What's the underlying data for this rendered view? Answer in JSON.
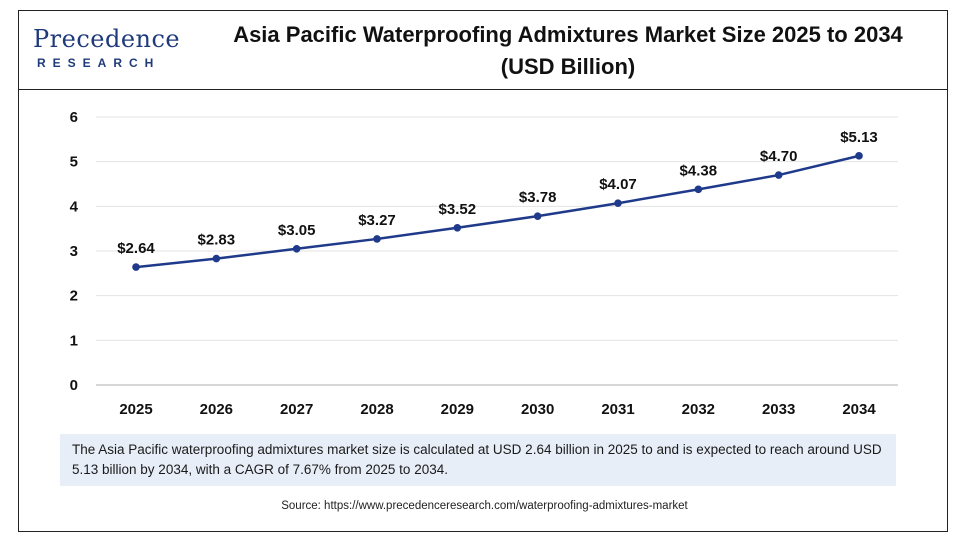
{
  "header": {
    "logo_main": "Precedence",
    "logo_sub": "RESEARCH",
    "title_line1": "Asia Pacific Waterproofing Admixtures Market Size 2025 to 2034",
    "title_line2": "(USD Billion)"
  },
  "colors": {
    "line": "#1f3a8a",
    "grid": "#e3e3e3",
    "note_bg": "#e8eef8",
    "brand": "#1f3a7a"
  },
  "chart_data": {
    "type": "line",
    "title": "Asia Pacific Waterproofing Admixtures Market Size 2025 to 2034 (USD Billion)",
    "categories": [
      "2025",
      "2026",
      "2027",
      "2028",
      "2029",
      "2030",
      "2031",
      "2032",
      "2033",
      "2034"
    ],
    "series": [
      {
        "values": [
          2.64,
          2.83,
          3.05,
          3.27,
          3.52,
          3.78,
          4.07,
          4.38,
          4.7,
          5.13
        ],
        "labels": [
          "$2.64",
          "$2.83",
          "$3.05",
          "$3.27",
          "$3.52",
          "$3.78",
          "$4.07",
          "$4.38",
          "$4.70",
          "$5.13"
        ]
      }
    ],
    "yticks": [
      "0",
      "1",
      "2",
      "3",
      "4",
      "5",
      "6"
    ],
    "ylim": [
      0,
      6
    ],
    "grid": true,
    "legend": "none"
  },
  "note": "The Asia Pacific waterproofing admixtures market size is calculated at USD 2.64 billion in 2025 to and is expected to reach around USD 5.13 billion by 2034, with a CAGR of 7.67% from 2025 to 2034.",
  "source": "Source: https://www.precedenceresearch.com/waterproofing-admixtures-market"
}
